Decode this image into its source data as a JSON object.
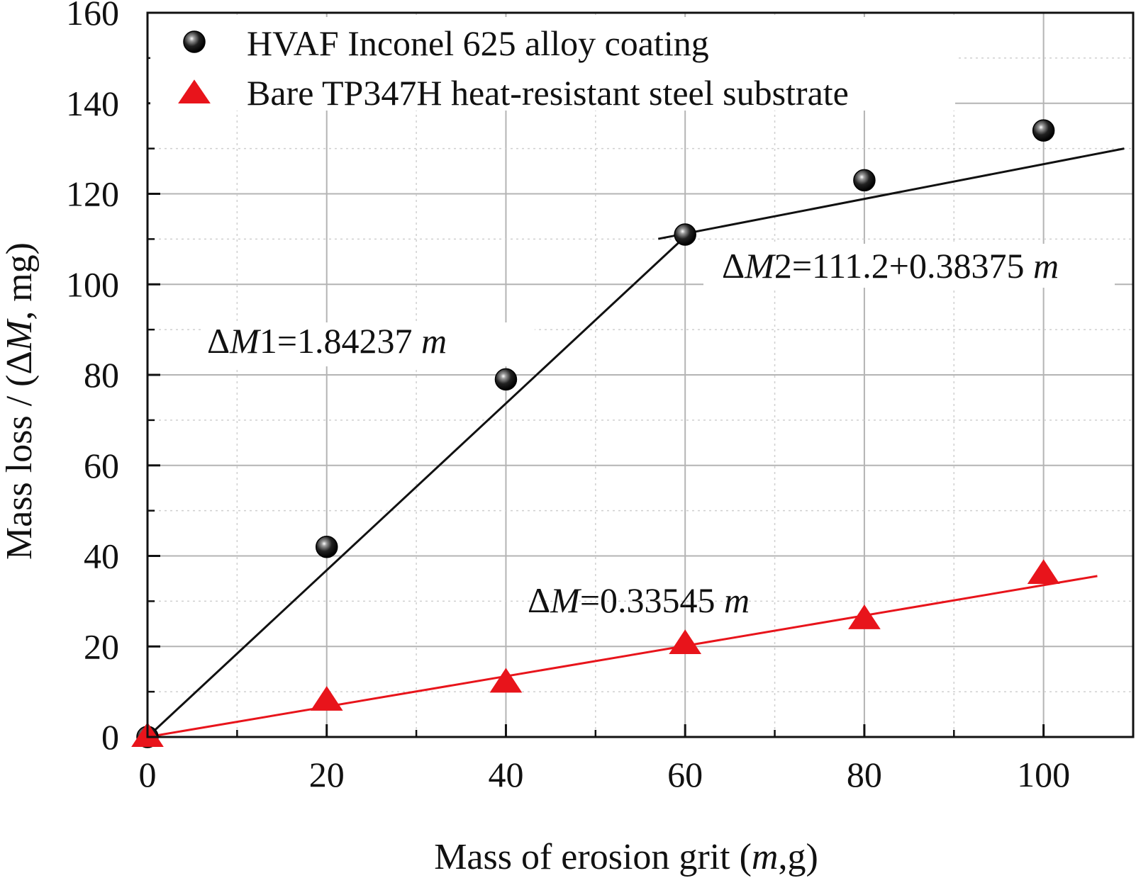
{
  "chart_data": {
    "type": "scatter",
    "xlabel": {
      "pre": "Mass of erosion grit (",
      "var": "m",
      "post": ",g)"
    },
    "ylabel": {
      "pre": "Mass loss / (Δ",
      "var": "M",
      "post": ", mg)"
    },
    "xlim": [
      0,
      110
    ],
    "ylim": [
      0,
      160
    ],
    "x_ticks": [
      0,
      20,
      40,
      60,
      80,
      100
    ],
    "y_ticks": [
      0,
      20,
      40,
      60,
      80,
      100,
      120,
      140,
      160
    ],
    "grid": true,
    "legend_position": "top-left",
    "series": [
      {
        "name": "HVAF Inconel 625 alloy coating",
        "marker": "sphere",
        "color": "#111111",
        "x": [
          0,
          20,
          40,
          60,
          80,
          100
        ],
        "y": [
          0,
          42,
          79,
          111,
          123,
          134
        ]
      },
      {
        "name": "Bare TP347H heat-resistant steel substrate",
        "marker": "triangle",
        "color": "#e8141b",
        "x": [
          0,
          20,
          40,
          60,
          80,
          100
        ],
        "y": [
          0,
          8,
          12,
          20.5,
          26,
          36
        ]
      }
    ],
    "fit_lines": [
      {
        "series": 0,
        "color": "#111111",
        "x_start": 0,
        "x_end": 61,
        "intercept": 0,
        "slope": 1.84237
      },
      {
        "series": 0,
        "color": "#111111",
        "x_start": 57,
        "x_end": 109,
        "intercept": 111.2,
        "slope": 0.38375,
        "x_offset": 60
      },
      {
        "series": 1,
        "color": "#e8141b",
        "x_start": 0,
        "x_end": 106,
        "intercept": 0,
        "slope": 0.33545
      }
    ],
    "annotations": [
      {
        "id": "eq1",
        "parts": [
          "Δ",
          "M",
          "1=1.84237 ",
          "m"
        ]
      },
      {
        "id": "eq2",
        "parts": [
          "Δ",
          "M",
          "2=111.2+0.38375 ",
          "m"
        ]
      },
      {
        "id": "eq3",
        "parts": [
          "Δ",
          "M",
          "=0.33545 ",
          "m"
        ]
      }
    ]
  }
}
